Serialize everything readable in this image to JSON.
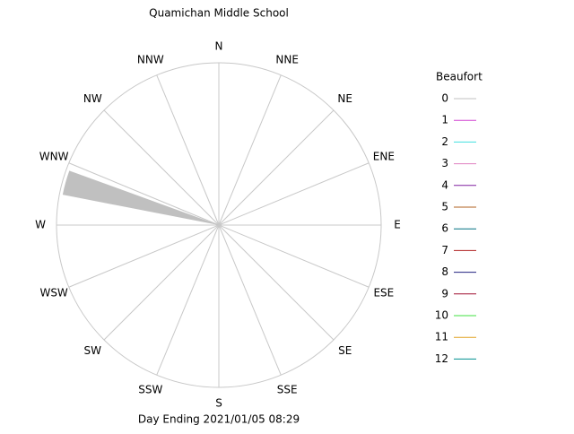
{
  "chart_data": {
    "type": "windrose",
    "title": "Quamichan Middle School",
    "xlabel": "Day Ending 2021/01/05 08:29",
    "categories": [
      "N",
      "NNE",
      "NE",
      "ENE",
      "E",
      "ESE",
      "SE",
      "SSE",
      "S",
      "SSW",
      "SW",
      "WSW",
      "W",
      "WNW",
      "NW",
      "NNW"
    ],
    "rlim": [
      0,
      100
    ],
    "legend_title": "Beaufort",
    "series": [
      {
        "name": "0",
        "color": "#c0c0c0"
      },
      {
        "name": "1",
        "color": "#d040d0"
      },
      {
        "name": "2",
        "color": "#40e0e0"
      },
      {
        "name": "3",
        "color": "#e080c0"
      },
      {
        "name": "4",
        "color": "#8020a0"
      },
      {
        "name": "5",
        "color": "#b06020"
      },
      {
        "name": "6",
        "color": "#007080"
      },
      {
        "name": "7",
        "color": "#b02020"
      },
      {
        "name": "8",
        "color": "#202080"
      },
      {
        "name": "9",
        "color": "#a01030"
      },
      {
        "name": "10",
        "color": "#40e040"
      },
      {
        "name": "11",
        "color": "#e0a020"
      },
      {
        "name": "12",
        "color": "#009090"
      }
    ],
    "sectors": [
      {
        "series": 0,
        "from": 281,
        "to": 290,
        "value": 98
      }
    ]
  }
}
